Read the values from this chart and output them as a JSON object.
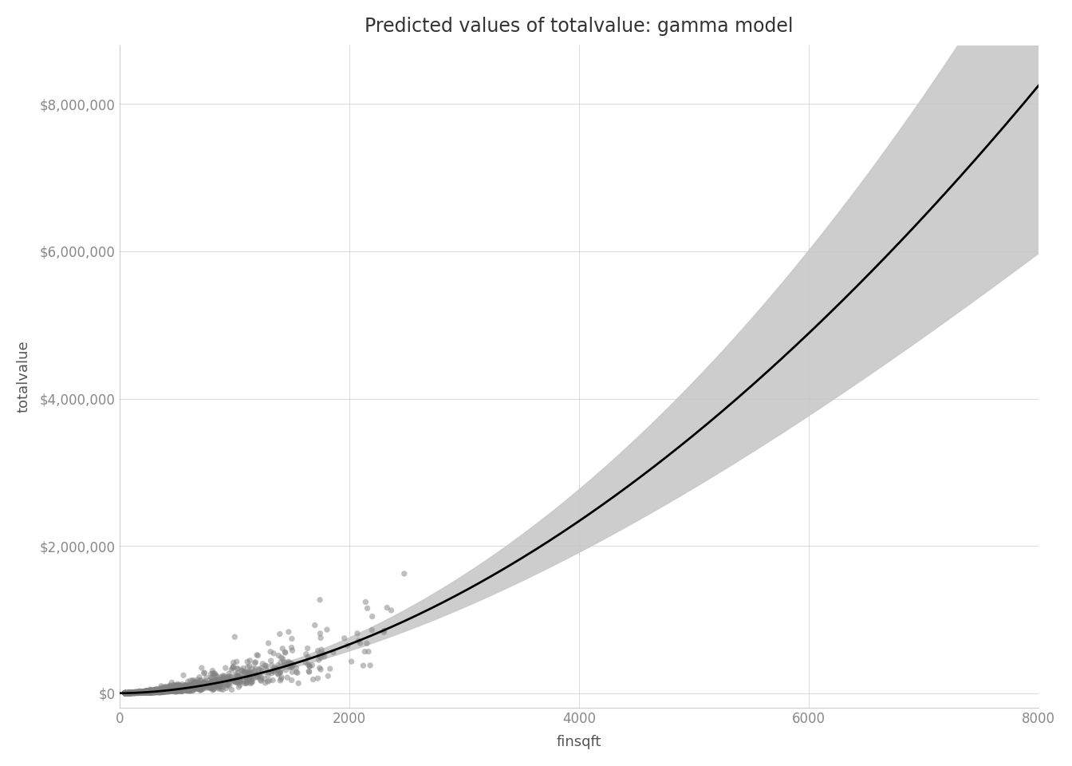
{
  "title": "Predicted values of totalvalue: gamma model",
  "xlabel": "finsqft",
  "ylabel": "totalvalue",
  "xlim": [
    0,
    8000
  ],
  "ylim": [
    -200000,
    8800000
  ],
  "yticks": [
    0,
    2000000,
    4000000,
    6000000,
    8000000
  ],
  "xticks": [
    0,
    2000,
    4000,
    6000,
    8000
  ],
  "scatter_color": "#808080",
  "scatter_alpha": 0.5,
  "scatter_size": 28,
  "line_color": "#000000",
  "ci_color": "#c8c8c8",
  "ci_alpha": 0.9,
  "background_color": "#ffffff",
  "grid_color": "#d9d9d9",
  "title_fontsize": 17,
  "axis_label_fontsize": 13,
  "tick_label_fontsize": 12,
  "a_param": 0.65,
  "b_param": 1.82,
  "ci_se_base": 0.045,
  "ci_se_slope": 1.2e-05,
  "seed": 42,
  "n_points": 1500
}
